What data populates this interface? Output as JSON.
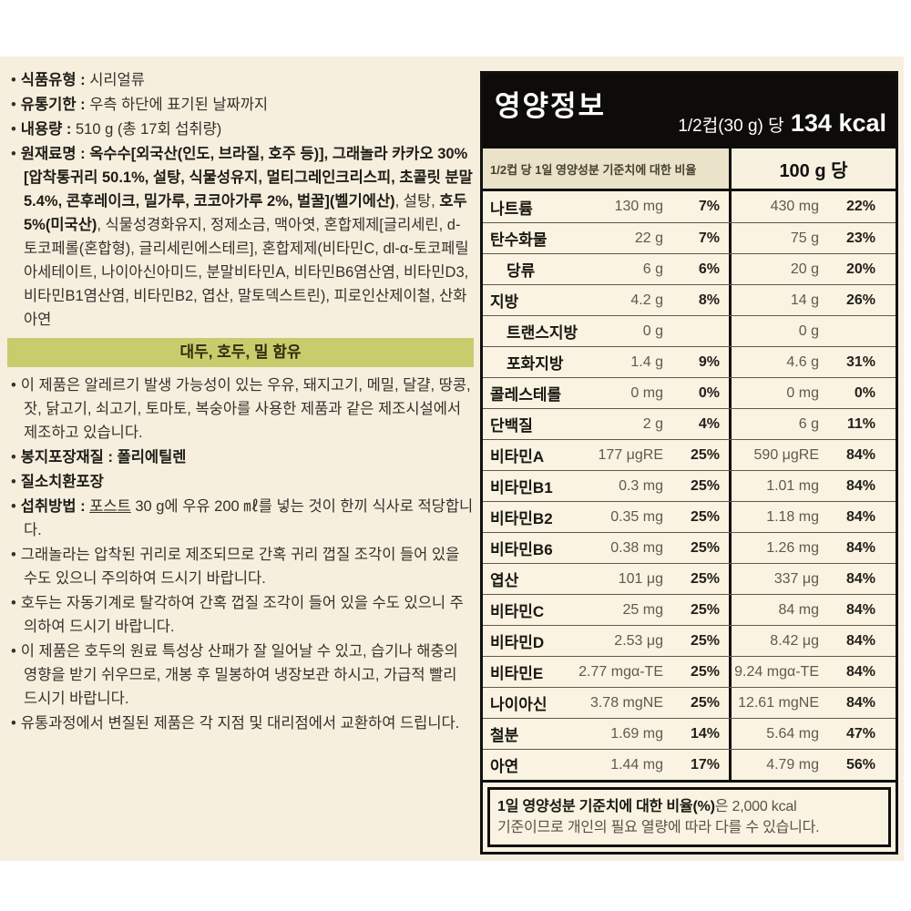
{
  "colors": {
    "label_background": "#f6efdd",
    "table_background": "#faf3e1",
    "allergen_banner_background": "#c9cc6d",
    "title_bar_background": "#0e0c09",
    "value_text_gray": "#5d5a50"
  },
  "left": {
    "bullet": "•",
    "product_type": {
      "label": "식품유형",
      "sep": " : ",
      "value": "시리얼류"
    },
    "shelf_life": {
      "label": "유통기한",
      "sep": " : ",
      "value": "우측 하단에 표기된 날짜까지"
    },
    "net_content": {
      "label": "내용량",
      "sep": " : ",
      "value": "510 g (총 17회 섭취량)"
    },
    "ingredients": {
      "label": "원재료명",
      "sep": " : ",
      "seg1_bold": "옥수수[외국산(인도, 브라질, 호주 등)], 그래놀라 카카오 30%[압착통귀리 50.1%, 설탕, 식물성유지, 멀티그레인크리스피, 초콜릿 분말 5.4%, 콘후레이크, 밀가루, 코코아가루 2%, 벌꿀](벨기에산)",
      "seg2": ", 설탕, ",
      "seg3_bold": "호두 5%(미국산)",
      "seg4": ", 식물성경화유지, 정제소금, 맥아엿, 혼합제제[글리세린, d-토코페롤(혼합형), 글리세린에스테르], 혼합제제(비타민C, dl-α-토코페릴아세테이트, 나이아신아미드, 분말비타민A, 비타민B6염산염, 비타민D3, 비타민B1염산염, 비타민B2, 엽산, 말토덱스트린), 피로인산제이철, 산화아연"
    },
    "allergen_banner": "대두, 호두, 밀 함유",
    "allergy_note": "이 제품은 알레르기 발생 가능성이 있는 우유, 돼지고기, 메밀, 달걀, 땅콩, 잣, 닭고기, 쇠고기, 토마토, 복숭아를 사용한 제품과 같은 제조시설에서 제조하고 있습니다.",
    "packaging": {
      "label": "봉지포장재질",
      "sep": " : ",
      "value": "폴리에틸렌"
    },
    "nitrogen": "질소치환포장",
    "serving_method": {
      "label": "섭취방법",
      "sep": " : ",
      "underlined": "포스트",
      "rest": " 30 g에 우유 200 ㎖를 넣는 것이 한끼 식사로 적당합니다."
    },
    "granola_note": "그래놀라는 압착된 귀리로 제조되므로 간혹 귀리 껍질 조각이 들어 있을 수도 있으니 주의하여 드시기 바랍니다.",
    "walnut_note": "호두는 자동기계로 탈각하여 간혹 껍질 조각이 들어 있을 수도 있으니 주의하여 드시기 바랍니다.",
    "storage_note": "이 제품은 호두의 원료 특성상 산패가 잘 일어날 수 있고, 습기나 해충의 영향을 받기 쉬우므로, 개봉 후 밀봉하여 냉장보관 하시고, 가급적 빨리 드시기 바랍니다.",
    "exchange_note": "유통과정에서 변질된 제품은 각 지점 및 대리점에서 교환하여 드립니다."
  },
  "nutrition": {
    "title": "영양정보",
    "serving_prefix": "1/2컵(30 g) 당 ",
    "serving_kcal": "134 kcal",
    "col_left_header": "1/2컵 당  1일 영양성분 기준치에 대한 비율",
    "col_right_header": "100 g 당",
    "rows": [
      {
        "name": "나트륨",
        "indent": false,
        "v1": "130 mg",
        "p1": "7%",
        "v2": "430 mg",
        "p2": "22%"
      },
      {
        "name": "탄수화물",
        "indent": false,
        "v1": "22 g",
        "p1": "7%",
        "v2": "75 g",
        "p2": "23%"
      },
      {
        "name": "당류",
        "indent": true,
        "v1": "6 g",
        "p1": "6%",
        "v2": "20 g",
        "p2": "20%"
      },
      {
        "name": "지방",
        "indent": false,
        "v1": "4.2 g",
        "p1": "8%",
        "v2": "14 g",
        "p2": "26%"
      },
      {
        "name": "트랜스지방",
        "indent": true,
        "v1": "0 g",
        "p1": "",
        "v2": "0 g",
        "p2": ""
      },
      {
        "name": "포화지방",
        "indent": true,
        "v1": "1.4 g",
        "p1": "9%",
        "v2": "4.6 g",
        "p2": "31%"
      },
      {
        "name": "콜레스테롤",
        "indent": false,
        "v1": "0 mg",
        "p1": "0%",
        "v2": "0 mg",
        "p2": "0%"
      },
      {
        "name": "단백질",
        "indent": false,
        "v1": "2 g",
        "p1": "4%",
        "v2": "6 g",
        "p2": "11%"
      },
      {
        "name": "비타민A",
        "indent": false,
        "v1": "177 μgRE",
        "p1": "25%",
        "v2": "590 μgRE",
        "p2": "84%"
      },
      {
        "name": "비타민B1",
        "indent": false,
        "v1": "0.3 mg",
        "p1": "25%",
        "v2": "1.01 mg",
        "p2": "84%"
      },
      {
        "name": "비타민B2",
        "indent": false,
        "v1": "0.35 mg",
        "p1": "25%",
        "v2": "1.18 mg",
        "p2": "84%"
      },
      {
        "name": "비타민B6",
        "indent": false,
        "v1": "0.38 mg",
        "p1": "25%",
        "v2": "1.26 mg",
        "p2": "84%"
      },
      {
        "name": "엽산",
        "indent": false,
        "v1": "101 μg",
        "p1": "25%",
        "v2": "337 μg",
        "p2": "84%"
      },
      {
        "name": "비타민C",
        "indent": false,
        "v1": "25 mg",
        "p1": "25%",
        "v2": "84 mg",
        "p2": "84%"
      },
      {
        "name": "비타민D",
        "indent": false,
        "v1": "2.53 μg",
        "p1": "25%",
        "v2": "8.42 μg",
        "p2": "84%"
      },
      {
        "name": "비타민E",
        "indent": false,
        "v1": "2.77 mgα-TE",
        "p1": "25%",
        "v2": "9.24 mgα-TE",
        "p2": "84%"
      },
      {
        "name": "나이아신",
        "indent": false,
        "v1": "3.78 mgNE",
        "p1": "25%",
        "v2": "12.61 mgNE",
        "p2": "84%"
      },
      {
        "name": "철분",
        "indent": false,
        "v1": "1.69 mg",
        "p1": "14%",
        "v2": "5.64 mg",
        "p2": "47%"
      },
      {
        "name": "아연",
        "indent": false,
        "v1": "1.44 mg",
        "p1": "17%",
        "v2": "4.79 mg",
        "p2": "56%"
      }
    ],
    "footnote": {
      "bold": "1일 영양성분 기준치에 대한 비율(%)",
      "mid": "은 ",
      "kcal": "2,000 kcal",
      "line2": "기준이므로 개인의 필요 열량에 따라 다를 수 있습니다."
    }
  }
}
